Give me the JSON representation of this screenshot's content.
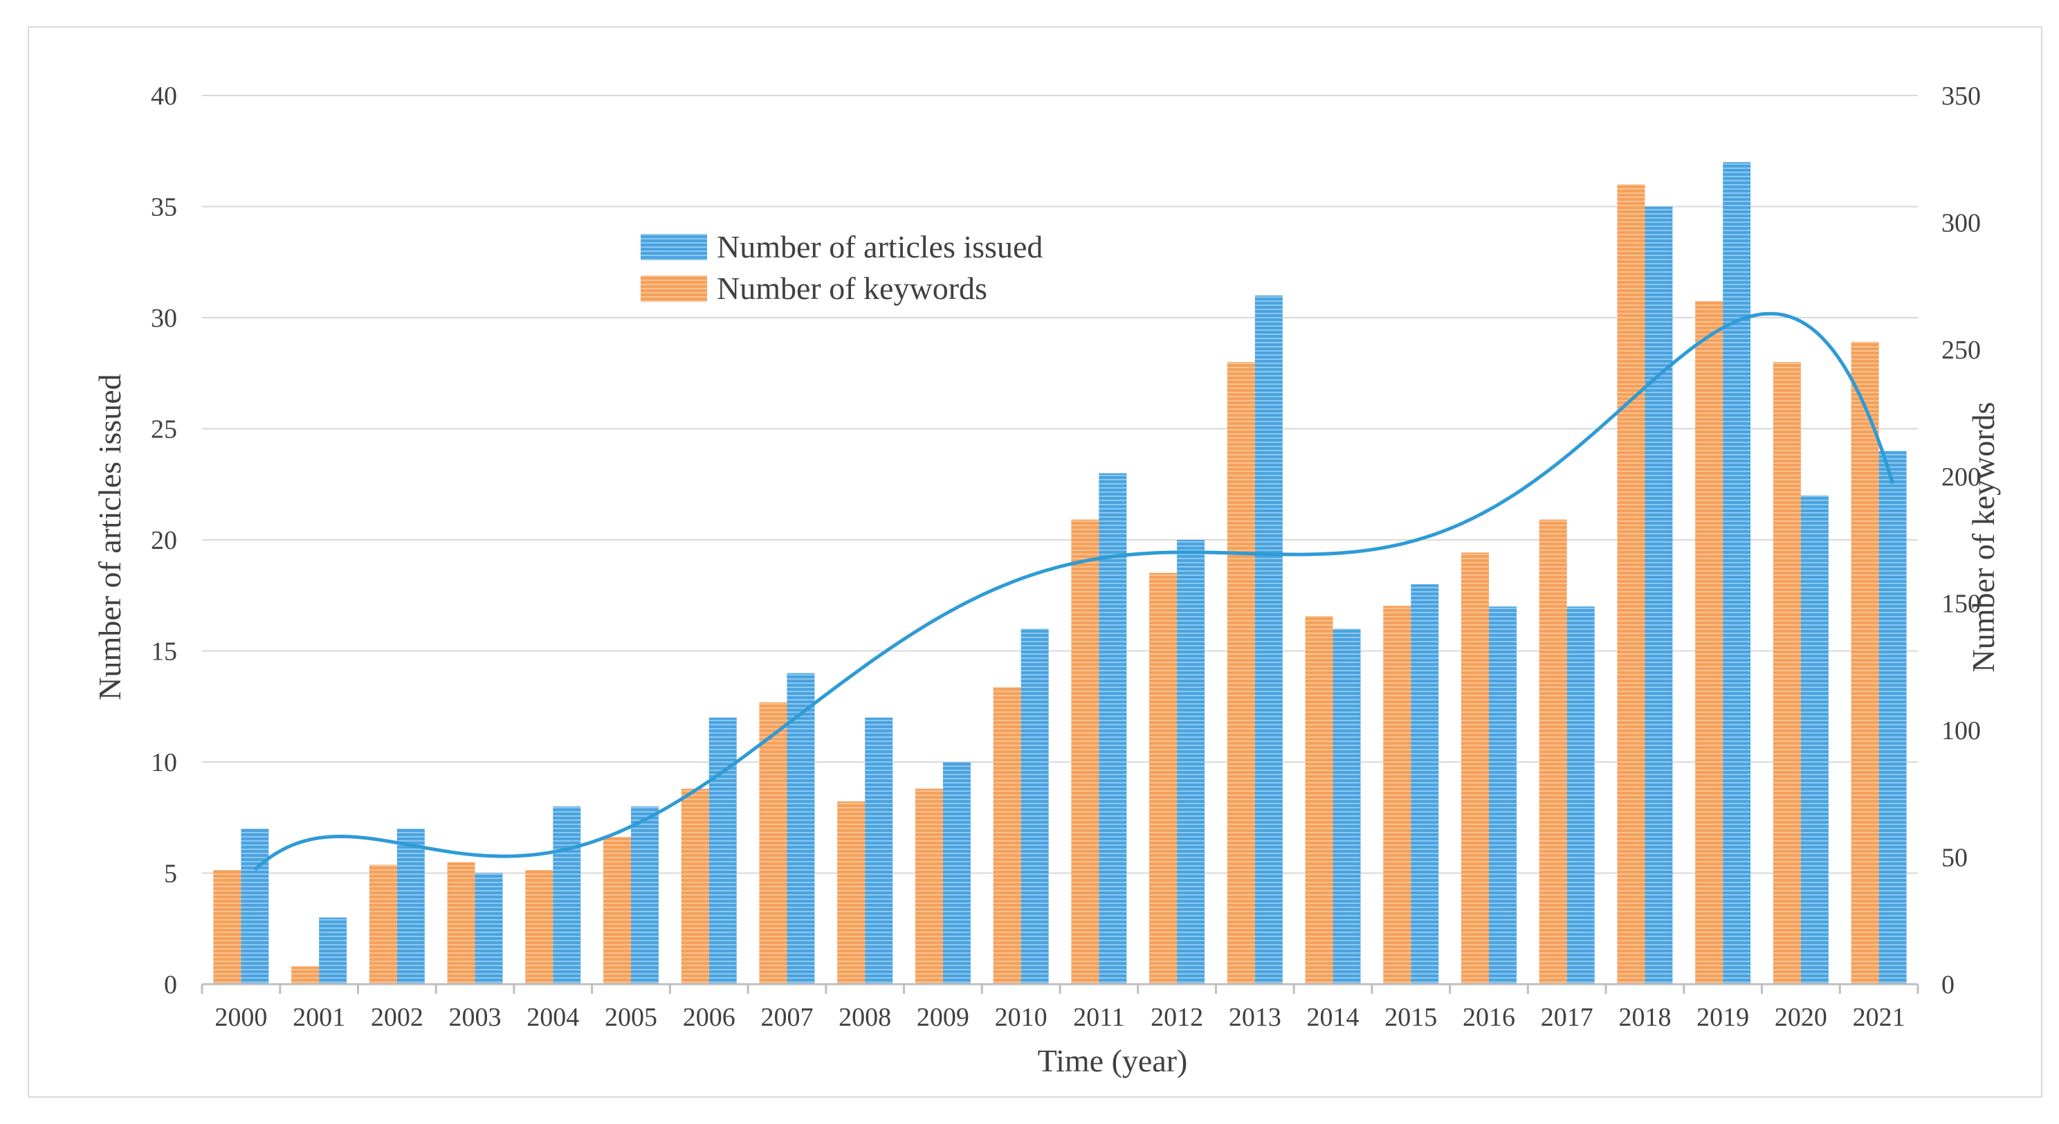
{
  "chart_data": {
    "type": "bar",
    "categories": [
      "2000",
      "2001",
      "2002",
      "2003",
      "2004",
      "2005",
      "2006",
      "2007",
      "2008",
      "2009",
      "2010",
      "2011",
      "2012",
      "2013",
      "2014",
      "2015",
      "2016",
      "2017",
      "2018",
      "2019",
      "2020",
      "2021"
    ],
    "series": [
      {
        "name": "Number of articles issued",
        "axis": "left",
        "color": "#4aa3e0",
        "values": [
          7,
          3,
          7,
          5,
          8,
          8,
          12,
          14,
          12,
          10,
          16,
          23,
          20,
          31,
          16,
          18,
          17,
          17,
          35,
          37,
          22,
          24
        ]
      },
      {
        "name": "Number of keywords",
        "axis": "right",
        "color": "#f5a05a",
        "values": [
          45,
          7,
          47,
          48,
          45,
          58,
          77,
          111,
          72,
          77,
          117,
          183,
          162,
          245,
          145,
          149,
          170,
          183,
          315,
          269,
          245,
          253
        ]
      }
    ],
    "trendline": {
      "series": "Number of articles issued",
      "type": "polynomial",
      "color": "#2e9bd6"
    },
    "xlabel": "Time (year)",
    "ylabel_left": "Number of articles issued",
    "ylabel_right": "Number of keywords",
    "ylim_left": [
      0,
      40
    ],
    "yticks_left": [
      0,
      5,
      10,
      15,
      20,
      25,
      30,
      35,
      40
    ],
    "ylim_right": [
      0,
      350
    ],
    "yticks_right": [
      0,
      50,
      100,
      150,
      200,
      250,
      300,
      350
    ],
    "grid": true,
    "legend_position": "top-center"
  }
}
